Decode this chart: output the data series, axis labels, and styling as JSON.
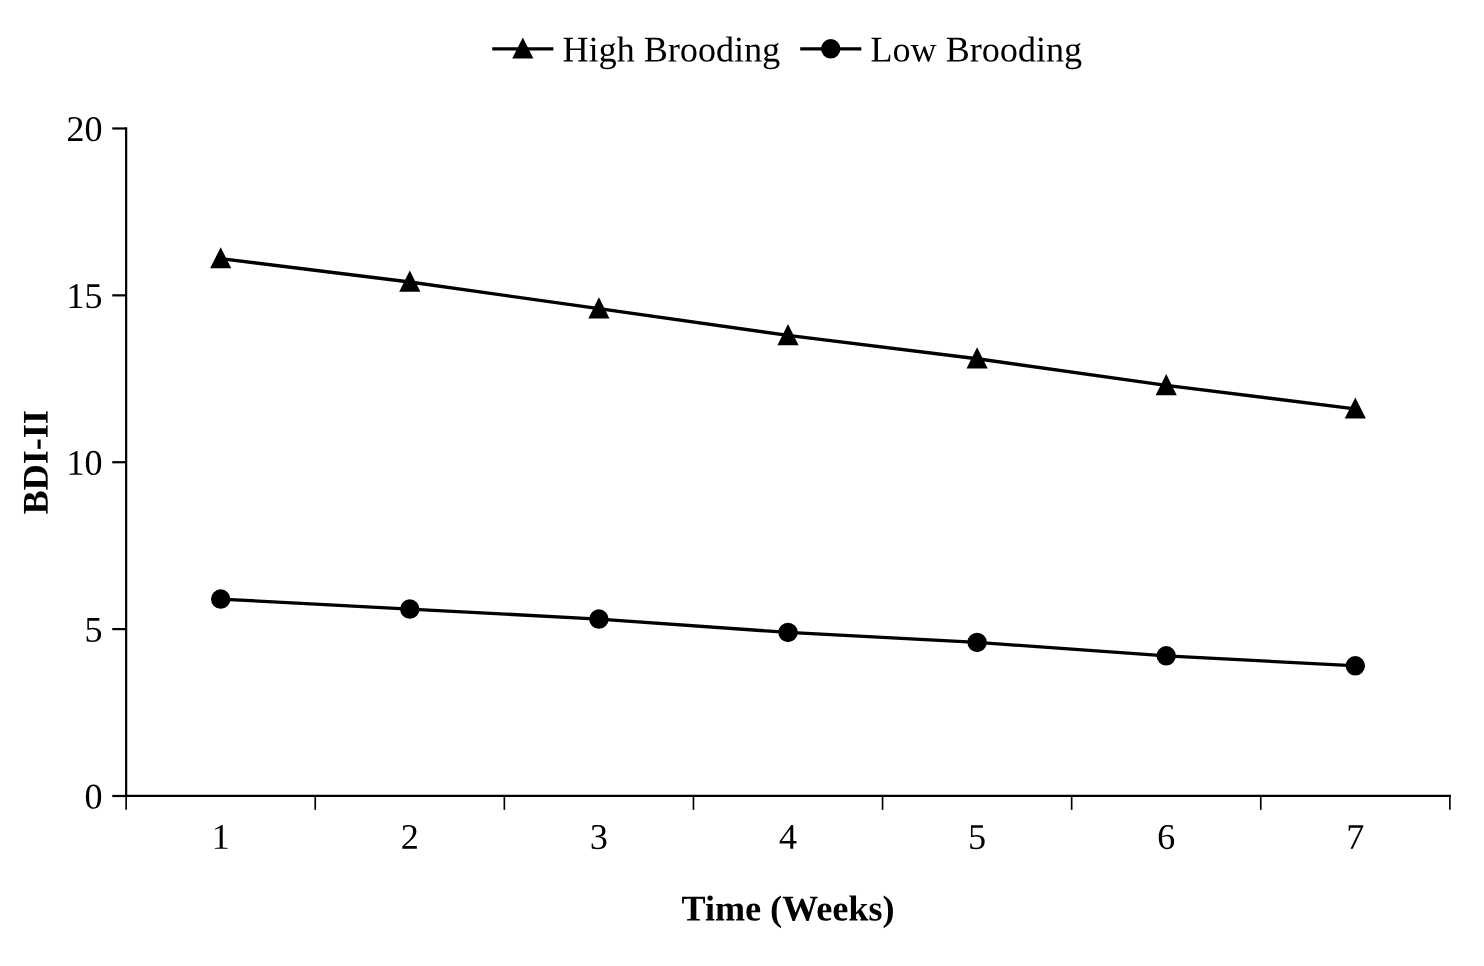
{
  "chart_data": {
    "type": "line",
    "xlabel": "Time (Weeks)",
    "ylabel": "BDI-II",
    "categories": [
      "1",
      "2",
      "3",
      "4",
      "5",
      "6",
      "7"
    ],
    "series": [
      {
        "name": "High Brooding",
        "color": "#000000",
        "marker": "triangle",
        "values": [
          16.1,
          15.4,
          14.6,
          13.8,
          13.1,
          12.3,
          11.6
        ]
      },
      {
        "name": "Low Brooding",
        "color": "#000000",
        "marker": "circle",
        "values": [
          5.9,
          5.6,
          5.3,
          4.9,
          4.6,
          4.2,
          3.9
        ]
      }
    ],
    "ylim": [
      0,
      20
    ],
    "yticks": [
      0,
      5,
      10,
      15,
      20
    ],
    "legend": "top",
    "line_style": "solid"
  }
}
